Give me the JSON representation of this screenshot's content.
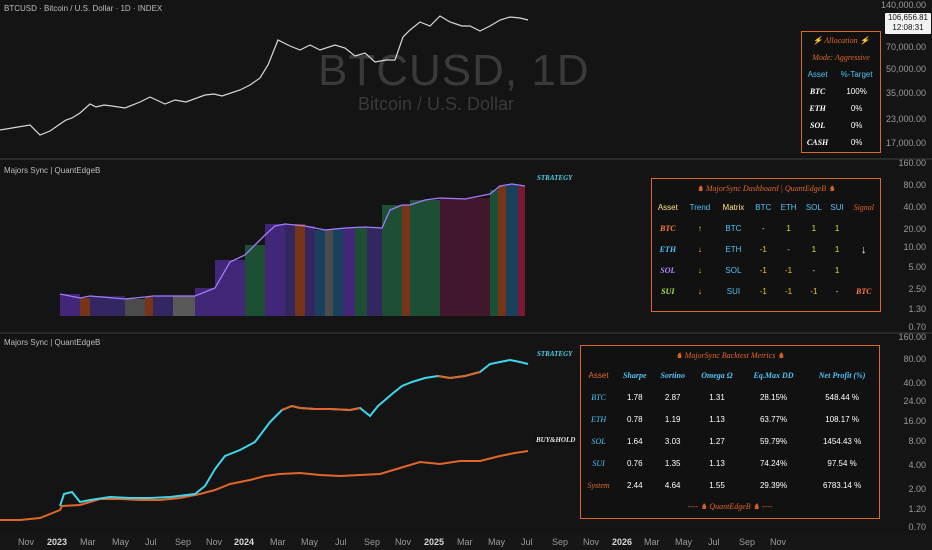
{
  "header": {
    "symbol_title": "BTCUSD · Bitcoin / U.S. Dollar · 1D · INDEX",
    "watermark_main": "BTCUSD, 1D",
    "watermark_sub": "Bitcoin / U.S. Dollar",
    "last_price": "106,656.81",
    "countdown": "12:08:31"
  },
  "price_axis": {
    "labels": [
      "140,000.00",
      "70,000.00",
      "50,000.00",
      "35,000.00",
      "23,000.00",
      "17,000.00"
    ]
  },
  "panes": {
    "dashboard_pane_title": "Majors Sync | QuantEdgeB",
    "backtest_pane_title": "Majors Sync | QuantEdgeB",
    "dashboard_axis": [
      "160.00",
      "80.00",
      "40.00",
      "20.00",
      "10.00",
      "5.00",
      "2.50",
      "1.30",
      "0.70"
    ],
    "backtest_axis": [
      "160.00",
      "80.00",
      "40.00",
      "24.00",
      "16.00",
      "8.00",
      "4.00",
      "2.00",
      "1.20",
      "0.70"
    ],
    "strategy_tag": "STRATEGY",
    "buyhold_tag": "BUY&HOLD"
  },
  "allocation": {
    "title": "⚡ Allocation ⚡",
    "mode": "Mode: Aggressive",
    "col_asset": "Asset",
    "col_target": "%-Target",
    "rows": [
      {
        "asset": "BTC",
        "pct": "100%"
      },
      {
        "asset": "ETH",
        "pct": "0%"
      },
      {
        "asset": "SOL",
        "pct": "0%"
      },
      {
        "asset": "CASH",
        "pct": "0%"
      }
    ]
  },
  "dashboard": {
    "title": "♞ MajorSync Dashboard | QuantEdgeB ♞",
    "headers": [
      "Asset",
      "Trend",
      "Matrix",
      "BTC",
      "ETH",
      "SOL",
      "SUI",
      "Signal"
    ],
    "rows": [
      {
        "asset": "BTC",
        "trend": "↑",
        "matrix": "BTC",
        "btc": "-",
        "eth": "1",
        "sol": "1",
        "sui": "1",
        "signal": ""
      },
      {
        "asset": "ETH",
        "trend": "↓",
        "matrix": "ETH",
        "btc": "-1",
        "eth": "-",
        "sol": "1",
        "sui": "1",
        "signal": "↓"
      },
      {
        "asset": "SOL",
        "trend": "↓",
        "matrix": "SOL",
        "btc": "-1",
        "eth": "-1",
        "sol": "-",
        "sui": "1",
        "signal": ""
      },
      {
        "asset": "SUI",
        "trend": "↓",
        "matrix": "SUI",
        "btc": "-1",
        "eth": "-1",
        "sol": "-1",
        "sui": "-",
        "signal": "BTC"
      }
    ]
  },
  "backtest": {
    "title": "♞ MajorSync Backtest Metrics ♞",
    "headers": [
      "Asset",
      "Sharpe",
      "Sortino",
      "Omega Ω",
      "Eq.Max DD",
      "Net Profit (%)"
    ],
    "rows": [
      {
        "asset": "BTC",
        "sharpe": "1.78",
        "sortino": "2.87",
        "omega": "1.31",
        "dd": "28.15%",
        "profit": "548.44 %"
      },
      {
        "asset": "ETH",
        "sharpe": "0.78",
        "sortino": "1.19",
        "omega": "1.13",
        "dd": "63.77%",
        "profit": "108.17 %"
      },
      {
        "asset": "SOL",
        "sharpe": "1.64",
        "sortino": "3.03",
        "omega": "1.27",
        "dd": "59.79%",
        "profit": "1454.43 %"
      },
      {
        "asset": "SUI",
        "sharpe": "0.76",
        "sortino": "1.35",
        "omega": "1.13",
        "dd": "74.24%",
        "profit": "97.54 %"
      },
      {
        "asset": "System",
        "sharpe": "2.44",
        "sortino": "4.64",
        "omega": "1.55",
        "dd": "29.39%",
        "profit": "6783.14 %"
      }
    ],
    "footer": "---- ♞ QuantEdgeB ♞ ----"
  },
  "time_axis": {
    "labels": [
      "Nov",
      "2023",
      "Mar",
      "May",
      "Jul",
      "Sep",
      "Nov",
      "2024",
      "Mar",
      "May",
      "Jul",
      "Sep",
      "Nov",
      "2025",
      "Mar",
      "May",
      "Jul",
      "Sep",
      "Nov",
      "2026",
      "Mar",
      "May",
      "Jul",
      "Sep",
      "Nov"
    ]
  },
  "colors": {
    "accent_orange": "#e0662a",
    "cyan": "#4dd0e1",
    "asset_btc": "#ff7a3d",
    "asset_eth": "#4fc3f7",
    "asset_sol": "#b388ff",
    "asset_sui": "#aee852",
    "green_up": "#c8e639",
    "bear_red": "#8b1a3a"
  }
}
